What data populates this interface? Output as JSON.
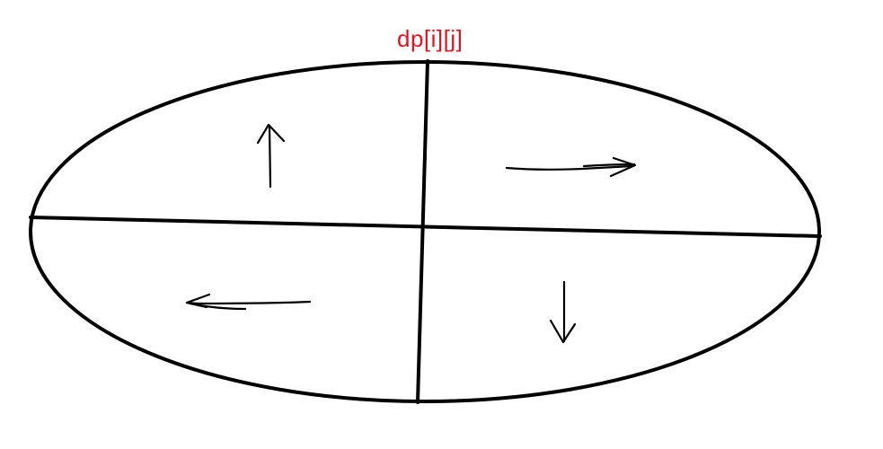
{
  "label": {
    "text": "dp[i][j]",
    "color": "#e0141e"
  },
  "stroke_color": "#000000",
  "arrows": [
    {
      "quadrant": "top-left",
      "direction": "up"
    },
    {
      "quadrant": "top-right",
      "direction": "right"
    },
    {
      "quadrant": "bottom-left",
      "direction": "left"
    },
    {
      "quadrant": "bottom-right",
      "direction": "down"
    }
  ]
}
